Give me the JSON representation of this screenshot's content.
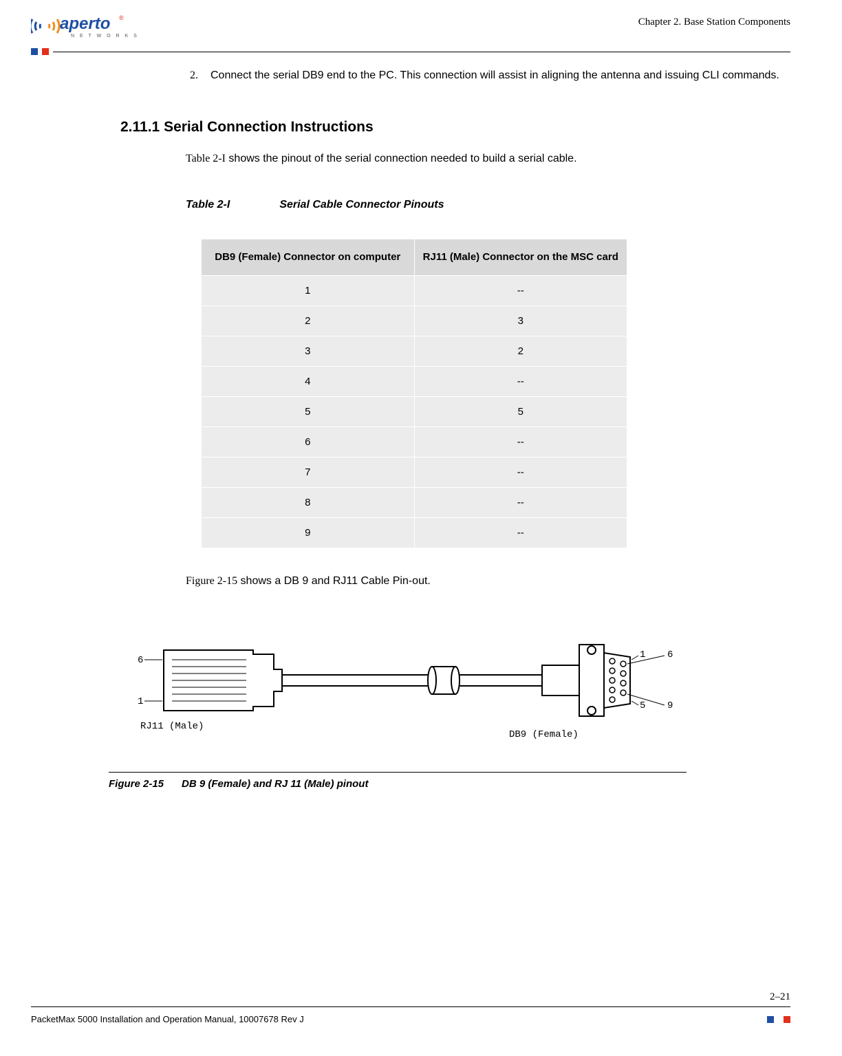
{
  "header": {
    "chapter": "Chapter 2.  Base Station Components",
    "logo_text_main": "aperto",
    "logo_text_sub": "N E T W O R K S",
    "accent_blue": "#1f4fa3",
    "accent_red": "#e1301e",
    "accent_orange": "#f28c1e"
  },
  "step": {
    "num": "2.",
    "text": "Connect the serial DB9 end to the PC. This connection will assist in aligning the antenna and issuing CLI commands."
  },
  "section": {
    "number": "2.11.1",
    "title": "Serial Connection Instructions",
    "intro_ref": "Table 2-I",
    "intro_rest": " shows the pinout of the serial connection needed to build a serial cable."
  },
  "table": {
    "label": "Table 2-I",
    "title": "Serial Cable Connector Pinouts",
    "columns": [
      "DB9 (Female) Connector on computer",
      "RJ11 (Male) Connector on the MSC card"
    ],
    "rows": [
      [
        "1",
        "--"
      ],
      [
        "2",
        "3"
      ],
      [
        "3",
        "2"
      ],
      [
        "4",
        "--"
      ],
      [
        "5",
        "5"
      ],
      [
        "6",
        "--"
      ],
      [
        "7",
        "--"
      ],
      [
        "8",
        "--"
      ],
      [
        "9",
        "--"
      ]
    ],
    "header_bg": "#d9d9d9",
    "cell_bg": "#ececec"
  },
  "after_table": {
    "ref": "Figure 2-15",
    "rest": " shows a DB 9 and RJ11 Cable Pin-out."
  },
  "figure": {
    "label": "Figure 2-15",
    "title": "DB 9 (Female) and RJ 11 (Male) pinout",
    "rj11_label": "RJ11 (Male)",
    "db9_label": "DB9 (Female)",
    "pin_labels": {
      "rj11_top": "6",
      "rj11_bot": "1",
      "db9_tl": "1",
      "db9_tr": "6",
      "db9_bl": "5",
      "db9_br": "9"
    }
  },
  "footer": {
    "left": "PacketMax 5000 Installation and Operation Manual,   10007678 Rev J",
    "page": "2–21"
  }
}
